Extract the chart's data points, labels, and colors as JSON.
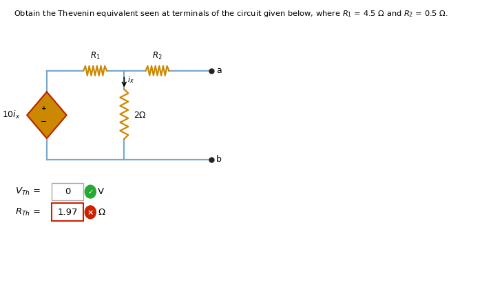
{
  "title": "Obtain the Thevenin equivalent seen at terminals of the circuit given below, where $R_1$ = 4.5 Ω and $R_2$ = 0.5 Ω.",
  "background_color": "#ffffff",
  "circuit": {
    "source_label": "$10i_x$",
    "R1_label": "$R_1$",
    "R2_label": "$R_2$",
    "resistor_mid_label": "2Ω",
    "ix_label": "$i_x$",
    "terminal_a": "a",
    "terminal_b": "b"
  },
  "answers": {
    "VTh_label": "$V_{Th}$",
    "VTh_value": "0",
    "VTh_unit": "V",
    "RTh_label": "$R_{Th}$",
    "RTh_value": "1.97",
    "RTh_unit": "Ω"
  },
  "colors": {
    "wire": "#7aa8cc",
    "resistor_zigzag": "#cc8800",
    "source_fill": "#cc8800",
    "source_border": "#bb2200",
    "text": "#000000",
    "correct_icon": "#22aa33",
    "wrong_icon": "#cc2200",
    "box_border_gray": "#aaaaaa",
    "box_border_red": "#cc2200",
    "terminal_dot": "#222222"
  }
}
